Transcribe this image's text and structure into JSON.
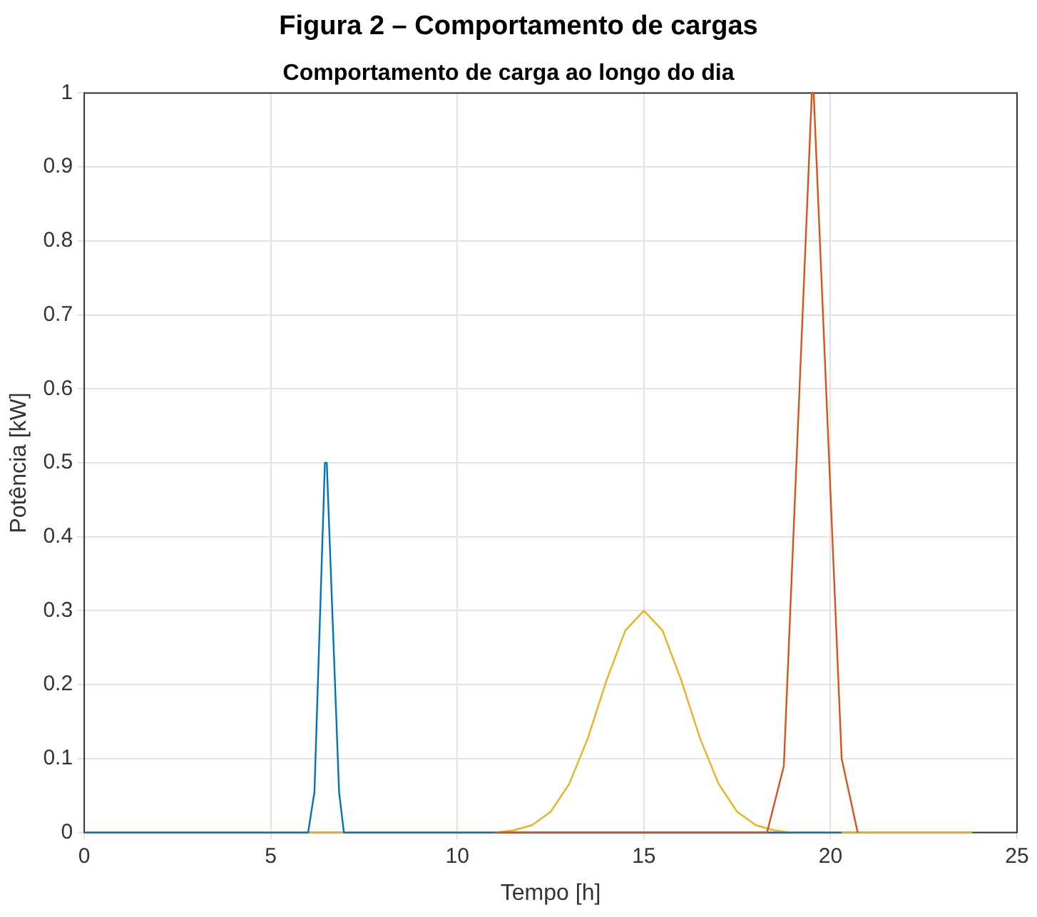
{
  "chart_data": {
    "type": "line",
    "title": "Figura 2 – Comportamento de cargas",
    "subtitle": "Comportamento de carga ao longo do dia",
    "xlabel": "Tempo [h]",
    "ylabel": "Potência [kW]",
    "xlim": [
      0,
      25
    ],
    "xticks": [
      0,
      5,
      10,
      15,
      20,
      25
    ],
    "ylim": [
      0,
      1
    ],
    "yticks": [
      0,
      0.1,
      0.2,
      0.3,
      0.4,
      0.5,
      0.6,
      0.7,
      0.8,
      0.9,
      1
    ],
    "grid": true,
    "legend": false,
    "marker": "none",
    "line_style": "solid",
    "series": [
      {
        "color": "#edb120",
        "x": [
          0,
          11,
          11.5,
          12,
          12.5,
          13,
          13.5,
          14,
          14.5,
          15,
          15.5,
          16,
          16.5,
          17,
          17.5,
          18,
          18.5,
          19,
          23.8
        ],
        "values": [
          0,
          0,
          0.003,
          0.01,
          0.028,
          0.066,
          0.128,
          0.206,
          0.273,
          0.3,
          0.273,
          0.206,
          0.128,
          0.066,
          0.028,
          0.01,
          0.003,
          0,
          0
        ]
      },
      {
        "color": "#0072bd",
        "x": [
          0,
          6,
          6.17,
          6.45,
          6.5,
          6.83,
          6.96,
          20.3
        ],
        "values": [
          0,
          0,
          0.055,
          0.5,
          0.5,
          0.055,
          0,
          0
        ]
      },
      {
        "color": "#d95319",
        "x": [
          11,
          18.3,
          18.75,
          19.5,
          19.55,
          20.3,
          20.73
        ],
        "values": [
          0,
          0,
          0.09,
          1,
          1,
          0.1,
          0
        ]
      }
    ]
  }
}
